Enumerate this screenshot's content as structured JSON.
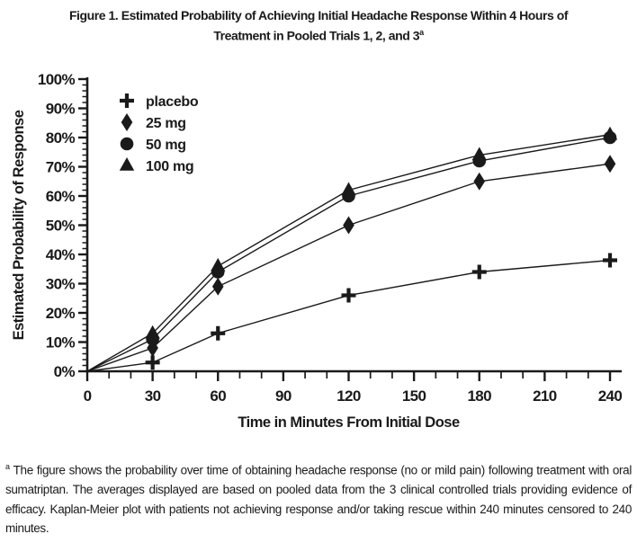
{
  "figure": {
    "title_line1": "Figure 1. Estimated Probability of Achieving Initial Headache Response Within 4 Hours of",
    "title_line2": "Treatment in Pooled Trials 1, 2, and 3",
    "title_superscript": "a"
  },
  "chart_data": {
    "type": "line",
    "x": [
      0,
      30,
      60,
      120,
      180,
      240
    ],
    "series": [
      {
        "name": "placebo",
        "marker": "plus",
        "values": [
          0,
          3,
          13,
          26,
          34,
          38
        ]
      },
      {
        "name": "25 mg",
        "marker": "diamond",
        "values": [
          0,
          8,
          29,
          50,
          65,
          71
        ]
      },
      {
        "name": "50 mg",
        "marker": "circle",
        "values": [
          0,
          11,
          34,
          60,
          72,
          80
        ]
      },
      {
        "name": "100 mg",
        "marker": "triangle",
        "values": [
          0,
          13,
          36,
          62,
          74,
          81
        ]
      }
    ],
    "xlabel": "Time in Minutes From Initial Dose",
    "ylabel": "Estimated Probability of Response",
    "xlim": [
      0,
      240
    ],
    "ylim": [
      0,
      100
    ],
    "x_major_tick_step": 30,
    "x_minor_tick_step": 10,
    "y_major_tick_step": 10,
    "y_minor_tick_step": 2,
    "y_tick_suffix": "%",
    "grid": false,
    "legend_position": "top-left",
    "line_color": "#1a1a1a"
  },
  "footnote": {
    "superscript": "a",
    "text": "The figure shows the probability over time of obtaining headache response (no or mild pain) following treatment with oral sumatriptan. The averages displayed are based on pooled data from the 3 clinical controlled trials providing evidence of efficacy. Kaplan-Meier plot with patients not achieving response and/or taking rescue within 240 minutes censored to 240 minutes."
  }
}
